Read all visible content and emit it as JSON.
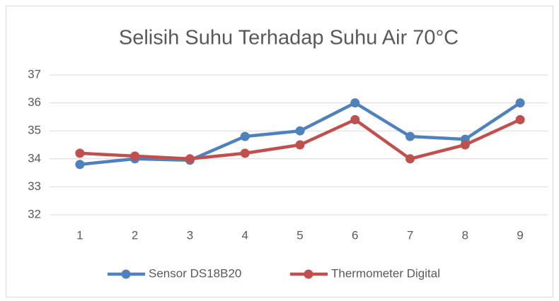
{
  "chart_data": {
    "type": "line",
    "title": "Selisih Suhu Terhadap Suhu Air 70°C",
    "categories": [
      "1",
      "2",
      "3",
      "4",
      "5",
      "6",
      "7",
      "8",
      "9"
    ],
    "series": [
      {
        "name": "Sensor DS18B20",
        "color": "#4f81bd",
        "values": [
          33.8,
          34.0,
          33.95,
          34.8,
          35.0,
          36.0,
          34.8,
          34.7,
          36.0
        ]
      },
      {
        "name": "Thermometer Digital",
        "color": "#c0504d",
        "values": [
          34.2,
          34.1,
          34.0,
          34.2,
          34.5,
          35.4,
          34.0,
          34.5,
          35.4
        ]
      }
    ],
    "ylim": [
      32,
      37
    ],
    "yticks": [
      32,
      33,
      34,
      35,
      36,
      37
    ],
    "grid": true,
    "legend": "bottom"
  }
}
